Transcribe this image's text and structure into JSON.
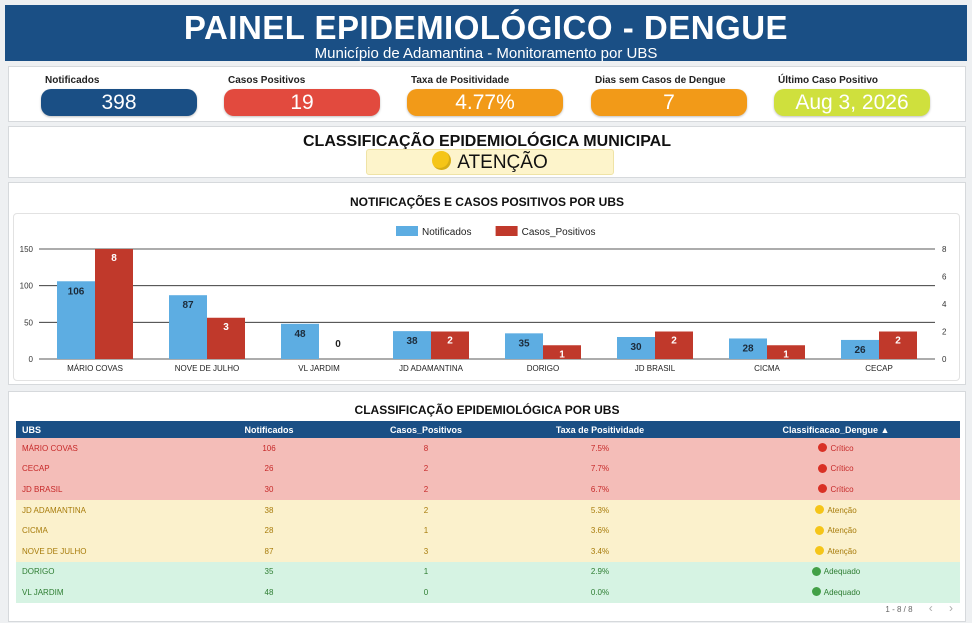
{
  "header": {
    "title": "PAINEL EPIDEMIOLÓGICO - DENGUE",
    "subtitle": "Município de Adamantina - Monitoramento por UBS"
  },
  "kpis": [
    {
      "label": "Notificados",
      "value": "398",
      "color": "#1a4f85",
      "text_color": "#ffffff"
    },
    {
      "label": "Casos Positivos",
      "value": "19",
      "color": "#e24a3e",
      "text_color": "#ffffff"
    },
    {
      "label": "Taxa de Positividade",
      "value": "4.77%",
      "color": "#f29a18",
      "text_color": "#ffffff"
    },
    {
      "label": "Dias sem Casos de Dengue",
      "value": "7",
      "color": "#f29a18",
      "text_color": "#ffffff"
    },
    {
      "label": "Último Caso Positivo",
      "value": "Aug 3, 2026",
      "color": "#cfe03d",
      "text_color": "#ffffff"
    }
  ],
  "classification": {
    "title": "CLASSIFICAÇÃO EPIDEMIOLÓGICA MUNICIPAL",
    "status": "ATENÇÃO",
    "status_color": "#f5c518"
  },
  "chart_title": "NOTIFICAÇÕES E CASOS POSITIVOS POR UBS",
  "chart_data": {
    "type": "bar",
    "categories": [
      "MÁRIO COVAS",
      "NOVE DE JULHO",
      "VL JARDIM",
      "JD ADAMANTINA",
      "DORIGO",
      "JD BRASIL",
      "CICMA",
      "CECAP"
    ],
    "series": [
      {
        "name": "Notificados",
        "values": [
          106,
          87,
          48,
          38,
          35,
          30,
          28,
          26
        ],
        "color": "#5dade2",
        "axis": "left"
      },
      {
        "name": "Casos_Positivos",
        "values": [
          8,
          3,
          0,
          2,
          1,
          2,
          1,
          2
        ],
        "color": "#c0392b",
        "axis": "right"
      }
    ],
    "y_left": {
      "range": [
        0,
        150
      ],
      "ticks": [
        0,
        50,
        100,
        150
      ]
    },
    "y_right": {
      "range": [
        0,
        8
      ],
      "ticks": [
        0,
        2,
        4,
        6,
        8
      ]
    },
    "legend": "top-center",
    "grid": true
  },
  "table": {
    "title": "CLASSIFICAÇÃO EPIDEMIOLÓGICA POR UBS",
    "columns": [
      "UBS",
      "Notificados",
      "Casos_Positivos",
      "Taxa de Positividade",
      "Classificacao_Dengue ▲"
    ],
    "rows": [
      {
        "ubs": "MÁRIO COVAS",
        "notificados": "106",
        "positivos": "8",
        "taxa": "7.5%",
        "classe": "Crítico",
        "level": "critico",
        "dot": "#d93025"
      },
      {
        "ubs": "CECAP",
        "notificados": "26",
        "positivos": "2",
        "taxa": "7.7%",
        "classe": "Crítico",
        "level": "critico",
        "dot": "#d93025"
      },
      {
        "ubs": "JD BRASIL",
        "notificados": "30",
        "positivos": "2",
        "taxa": "6.7%",
        "classe": "Crítico",
        "level": "critico",
        "dot": "#d93025"
      },
      {
        "ubs": "JD ADAMANTINA",
        "notificados": "38",
        "positivos": "2",
        "taxa": "5.3%",
        "classe": "Atenção",
        "level": "atencao",
        "dot": "#f5c518"
      },
      {
        "ubs": "CICMA",
        "notificados": "28",
        "positivos": "1",
        "taxa": "3.6%",
        "classe": "Atenção",
        "level": "atencao",
        "dot": "#f5c518"
      },
      {
        "ubs": "NOVE DE JULHO",
        "notificados": "87",
        "positivos": "3",
        "taxa": "3.4%",
        "classe": "Atenção",
        "level": "atencao",
        "dot": "#f5c518"
      },
      {
        "ubs": "DORIGO",
        "notificados": "35",
        "positivos": "1",
        "taxa": "2.9%",
        "classe": "Adequado",
        "level": "adequado",
        "dot": "#43a047"
      },
      {
        "ubs": "VL JARDIM",
        "notificados": "48",
        "positivos": "0",
        "taxa": "0.0%",
        "classe": "Adequado",
        "level": "adequado",
        "dot": "#43a047"
      }
    ],
    "pager": "1 - 8 / 8",
    "prev_icon": "‹",
    "next_icon": "›"
  }
}
